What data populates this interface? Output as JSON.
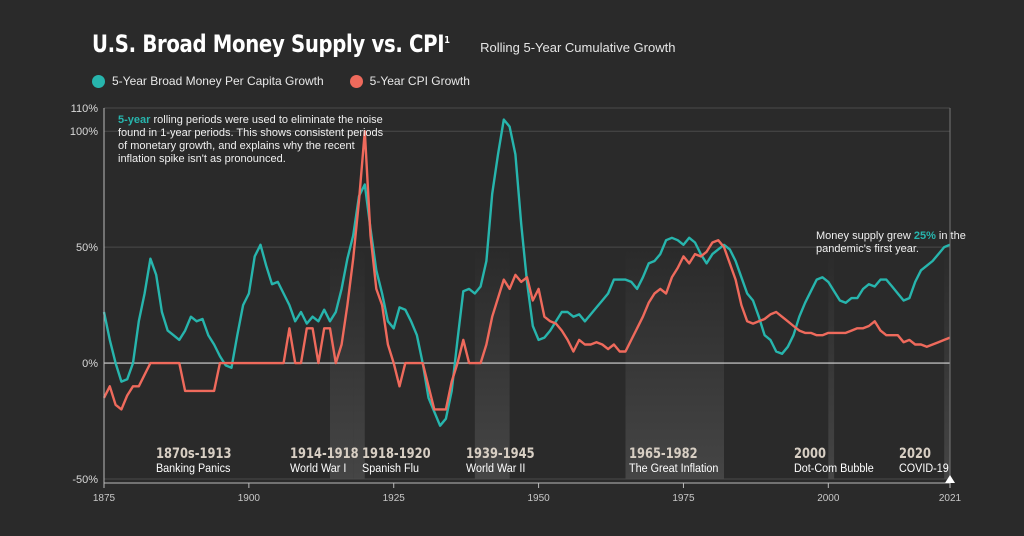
{
  "header": {
    "title": "U.S. Broad Money Supply vs. CPI",
    "title_sup": "1",
    "subtitle": "Rolling 5-Year Cumulative Growth"
  },
  "legend": {
    "money_label": "5-Year Broad Money Per Capita Growth",
    "cpi_label": "5-Year CPI Growth"
  },
  "colors": {
    "money": "#27b5ad",
    "cpi": "#ef6a5c",
    "background": "#2a2a2a",
    "era_shade": "#4a4a4a"
  },
  "note": {
    "highlight": "5-year",
    "text": " rolling periods were used to eliminate the noise found in 1-year periods. This shows consistent periods of monetary growth, and explains why the recent inflation spike isn't as pronounced."
  },
  "callout": {
    "pre": "Money supply grew ",
    "highlight": "25%",
    "post": " in the pandemic's first year."
  },
  "chart_data": {
    "type": "line",
    "title": "U.S. Broad Money Supply vs. CPI",
    "subtitle": "Rolling 5-Year Cumulative Growth",
    "xlim": [
      1875,
      2021
    ],
    "ylim": [
      -50,
      110
    ],
    "x_ticks": [
      1875,
      1900,
      1925,
      1950,
      1975,
      2000,
      2021
    ],
    "y_ticks": [
      {
        "value": 110,
        "label": "110%"
      },
      {
        "value": 100,
        "label": "100%"
      },
      {
        "value": 50,
        "label": "50%"
      },
      {
        "value": 0,
        "label": "0%"
      },
      {
        "value": -50,
        "label": "-50%"
      }
    ],
    "legend_position": "top-left",
    "series": [
      {
        "name": "5-Year Broad Money Per Capita Growth",
        "key": "money",
        "points": [
          [
            1875,
            22
          ],
          [
            1876,
            10
          ],
          [
            1877,
            0
          ],
          [
            1878,
            -8
          ],
          [
            1879,
            -7
          ],
          [
            1880,
            0
          ],
          [
            1881,
            18
          ],
          [
            1882,
            30
          ],
          [
            1883,
            45
          ],
          [
            1884,
            38
          ],
          [
            1885,
            22
          ],
          [
            1886,
            14
          ],
          [
            1887,
            12
          ],
          [
            1888,
            10
          ],
          [
            1889,
            14
          ],
          [
            1890,
            20
          ],
          [
            1891,
            18
          ],
          [
            1892,
            19
          ],
          [
            1893,
            12
          ],
          [
            1894,
            8
          ],
          [
            1895,
            3
          ],
          [
            1896,
            -1
          ],
          [
            1897,
            -2
          ],
          [
            1898,
            12
          ],
          [
            1899,
            25
          ],
          [
            1900,
            30
          ],
          [
            1901,
            46
          ],
          [
            1902,
            51
          ],
          [
            1903,
            42
          ],
          [
            1904,
            34
          ],
          [
            1905,
            35
          ],
          [
            1906,
            30
          ],
          [
            1907,
            25
          ],
          [
            1908,
            18
          ],
          [
            1909,
            22
          ],
          [
            1910,
            17
          ],
          [
            1911,
            20
          ],
          [
            1912,
            18
          ],
          [
            1913,
            23
          ],
          [
            1914,
            18
          ],
          [
            1915,
            22
          ],
          [
            1916,
            32
          ],
          [
            1917,
            45
          ],
          [
            1918,
            55
          ],
          [
            1919,
            72
          ],
          [
            1920,
            77
          ],
          [
            1921,
            58
          ],
          [
            1922,
            40
          ],
          [
            1923,
            30
          ],
          [
            1924,
            18
          ],
          [
            1925,
            15
          ],
          [
            1926,
            24
          ],
          [
            1927,
            23
          ],
          [
            1928,
            18
          ],
          [
            1929,
            12
          ],
          [
            1930,
            0
          ],
          [
            1931,
            -15
          ],
          [
            1932,
            -21
          ],
          [
            1933,
            -27
          ],
          [
            1934,
            -24
          ],
          [
            1935,
            -12
          ],
          [
            1936,
            10
          ],
          [
            1937,
            31
          ],
          [
            1938,
            32
          ],
          [
            1939,
            30
          ],
          [
            1940,
            33
          ],
          [
            1941,
            44
          ],
          [
            1942,
            73
          ],
          [
            1943,
            90
          ],
          [
            1944,
            105
          ],
          [
            1945,
            102
          ],
          [
            1946,
            90
          ],
          [
            1947,
            60
          ],
          [
            1948,
            35
          ],
          [
            1949,
            16
          ],
          [
            1950,
            10
          ],
          [
            1951,
            11
          ],
          [
            1952,
            14
          ],
          [
            1953,
            18
          ],
          [
            1954,
            22
          ],
          [
            1955,
            22
          ],
          [
            1956,
            20
          ],
          [
            1957,
            21
          ],
          [
            1958,
            18
          ],
          [
            1959,
            21
          ],
          [
            1960,
            24
          ],
          [
            1961,
            27
          ],
          [
            1962,
            30
          ],
          [
            1963,
            36
          ],
          [
            1964,
            36
          ],
          [
            1965,
            36
          ],
          [
            1966,
            35
          ],
          [
            1967,
            32
          ],
          [
            1968,
            37
          ],
          [
            1969,
            43
          ],
          [
            1970,
            44
          ],
          [
            1971,
            47
          ],
          [
            1972,
            53
          ],
          [
            1973,
            54
          ],
          [
            1974,
            53
          ],
          [
            1975,
            51
          ],
          [
            1976,
            54
          ],
          [
            1977,
            52
          ],
          [
            1978,
            47
          ],
          [
            1979,
            43
          ],
          [
            1980,
            47
          ],
          [
            1981,
            49
          ],
          [
            1982,
            51
          ],
          [
            1983,
            49
          ],
          [
            1984,
            44
          ],
          [
            1985,
            37
          ],
          [
            1986,
            30
          ],
          [
            1987,
            27
          ],
          [
            1988,
            20
          ],
          [
            1989,
            12
          ],
          [
            1990,
            10
          ],
          [
            1991,
            5
          ],
          [
            1992,
            4
          ],
          [
            1993,
            7
          ],
          [
            1994,
            12
          ],
          [
            1995,
            20
          ],
          [
            1996,
            26
          ],
          [
            1997,
            31
          ],
          [
            1998,
            36
          ],
          [
            1999,
            37
          ],
          [
            2000,
            35
          ],
          [
            2001,
            31
          ],
          [
            2002,
            27
          ],
          [
            2003,
            26
          ],
          [
            2004,
            28
          ],
          [
            2005,
            28
          ],
          [
            2006,
            32
          ],
          [
            2007,
            34
          ],
          [
            2008,
            33
          ],
          [
            2009,
            36
          ],
          [
            2010,
            36
          ],
          [
            2011,
            33
          ],
          [
            2012,
            30
          ],
          [
            2013,
            27
          ],
          [
            2014,
            28
          ],
          [
            2015,
            35
          ],
          [
            2016,
            40
          ],
          [
            2017,
            42
          ],
          [
            2018,
            44
          ],
          [
            2019,
            47
          ],
          [
            2020,
            50
          ],
          [
            2021,
            51
          ]
        ]
      },
      {
        "name": "5-Year CPI Growth",
        "key": "cpi",
        "points": [
          [
            1875,
            -15
          ],
          [
            1876,
            -10
          ],
          [
            1877,
            -18
          ],
          [
            1878,
            -20
          ],
          [
            1879,
            -14
          ],
          [
            1880,
            -10
          ],
          [
            1881,
            -10
          ],
          [
            1882,
            -5
          ],
          [
            1883,
            0
          ],
          [
            1884,
            0
          ],
          [
            1885,
            0
          ],
          [
            1886,
            0
          ],
          [
            1887,
            0
          ],
          [
            1888,
            0
          ],
          [
            1889,
            -12
          ],
          [
            1890,
            -12
          ],
          [
            1891,
            -12
          ],
          [
            1892,
            -12
          ],
          [
            1893,
            -12
          ],
          [
            1894,
            -12
          ],
          [
            1895,
            0
          ],
          [
            1896,
            0
          ],
          [
            1897,
            0
          ],
          [
            1898,
            0
          ],
          [
            1899,
            0
          ],
          [
            1900,
            0
          ],
          [
            1901,
            0
          ],
          [
            1902,
            0
          ],
          [
            1903,
            0
          ],
          [
            1904,
            0
          ],
          [
            1905,
            0
          ],
          [
            1906,
            0
          ],
          [
            1907,
            15
          ],
          [
            1908,
            0
          ],
          [
            1909,
            0
          ],
          [
            1910,
            15
          ],
          [
            1911,
            15
          ],
          [
            1912,
            0
          ],
          [
            1913,
            15
          ],
          [
            1914,
            15
          ],
          [
            1915,
            0
          ],
          [
            1916,
            8
          ],
          [
            1917,
            25
          ],
          [
            1918,
            45
          ],
          [
            1919,
            70
          ],
          [
            1920,
            100
          ],
          [
            1921,
            55
          ],
          [
            1922,
            32
          ],
          [
            1923,
            25
          ],
          [
            1924,
            8
          ],
          [
            1925,
            0
          ],
          [
            1926,
            -10
          ],
          [
            1927,
            0
          ],
          [
            1928,
            0
          ],
          [
            1929,
            0
          ],
          [
            1930,
            0
          ],
          [
            1931,
            -10
          ],
          [
            1932,
            -20
          ],
          [
            1933,
            -20
          ],
          [
            1934,
            -20
          ],
          [
            1935,
            -8
          ],
          [
            1936,
            0
          ],
          [
            1937,
            10
          ],
          [
            1938,
            0
          ],
          [
            1939,
            0
          ],
          [
            1940,
            0
          ],
          [
            1941,
            8
          ],
          [
            1942,
            20
          ],
          [
            1943,
            28
          ],
          [
            1944,
            36
          ],
          [
            1945,
            32
          ],
          [
            1946,
            38
          ],
          [
            1947,
            35
          ],
          [
            1948,
            37
          ],
          [
            1949,
            27
          ],
          [
            1950,
            32
          ],
          [
            1951,
            20
          ],
          [
            1952,
            18
          ],
          [
            1953,
            17
          ],
          [
            1954,
            14
          ],
          [
            1955,
            10
          ],
          [
            1956,
            5
          ],
          [
            1957,
            10
          ],
          [
            1958,
            8
          ],
          [
            1959,
            8
          ],
          [
            1960,
            9
          ],
          [
            1961,
            8
          ],
          [
            1962,
            6
          ],
          [
            1963,
            8
          ],
          [
            1964,
            5
          ],
          [
            1965,
            5
          ],
          [
            1966,
            10
          ],
          [
            1967,
            15
          ],
          [
            1968,
            20
          ],
          [
            1969,
            26
          ],
          [
            1970,
            30
          ],
          [
            1971,
            32
          ],
          [
            1972,
            30
          ],
          [
            1973,
            37
          ],
          [
            1974,
            41
          ],
          [
            1975,
            46
          ],
          [
            1976,
            43
          ],
          [
            1977,
            47
          ],
          [
            1978,
            46
          ],
          [
            1979,
            48
          ],
          [
            1980,
            52
          ],
          [
            1981,
            53
          ],
          [
            1982,
            50
          ],
          [
            1983,
            43
          ],
          [
            1984,
            36
          ],
          [
            1985,
            25
          ],
          [
            1986,
            18
          ],
          [
            1987,
            17
          ],
          [
            1988,
            18
          ],
          [
            1989,
            19
          ],
          [
            1990,
            21
          ],
          [
            1991,
            22
          ],
          [
            1992,
            20
          ],
          [
            1993,
            18
          ],
          [
            1994,
            16
          ],
          [
            1995,
            14
          ],
          [
            1996,
            13
          ],
          [
            1997,
            13
          ],
          [
            1998,
            12
          ],
          [
            1999,
            12
          ],
          [
            2000,
            13
          ],
          [
            2001,
            13
          ],
          [
            2002,
            13
          ],
          [
            2003,
            13
          ],
          [
            2004,
            14
          ],
          [
            2005,
            15
          ],
          [
            2006,
            15
          ],
          [
            2007,
            16
          ],
          [
            2008,
            18
          ],
          [
            2009,
            14
          ],
          [
            2010,
            12
          ],
          [
            2011,
            12
          ],
          [
            2012,
            12
          ],
          [
            2013,
            9
          ],
          [
            2014,
            10
          ],
          [
            2015,
            8
          ],
          [
            2016,
            8
          ],
          [
            2017,
            7
          ],
          [
            2018,
            8
          ],
          [
            2019,
            9
          ],
          [
            2020,
            10
          ],
          [
            2021,
            11
          ]
        ]
      }
    ],
    "eras": [
      {
        "start": 1875,
        "end": 1913,
        "year_label": "1870s-1913",
        "name": "Banking Panics"
      },
      {
        "start": 1914,
        "end": 1918,
        "year_label": "1914-1918",
        "name": "World War I"
      },
      {
        "start": 1918,
        "end": 1920,
        "year_label": "1918-1920",
        "name": "Spanish Flu"
      },
      {
        "start": 1939,
        "end": 1945,
        "year_label": "1939-1945",
        "name": "World War II"
      },
      {
        "start": 1965,
        "end": 1982,
        "year_label": "1965-1982",
        "name": "The Great Inflation"
      },
      {
        "start": 2000,
        "end": 2001,
        "year_label": "2000",
        "name": "Dot-Com Bubble"
      },
      {
        "start": 2020,
        "end": 2021,
        "year_label": "2020",
        "name": "COVID-19"
      }
    ],
    "grid": true
  }
}
